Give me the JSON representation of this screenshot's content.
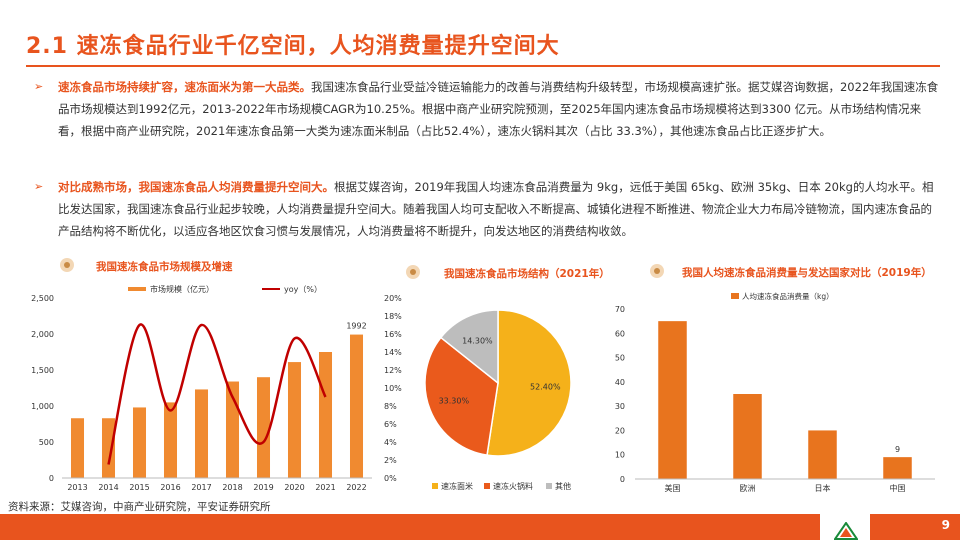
{
  "header": {
    "title": "2.1 速冻食品行业千亿空间，人均消费量提升空间大"
  },
  "paragraphs": [
    {
      "arrow": "➢",
      "bold": "速冻食品市场持续扩容，速冻面米为第一大品类。",
      "text": "我国速冻食品行业受益冷链运输能力的改善与消费结构升级转型，市场规模高速扩张。据艾媒咨询数据，2022年我国速冻食品市场规模达到1992亿元，2013-2022年市场规模CAGR为10.25%。根据中商产业研究院预测，至2025年国内速冻食品市场规模将达到3300 亿元。从市场结构情况来看，根据中商产业研究院，2021年速冻食品第一大类为速冻面米制品（占比52.4%），速冻火锅料其次（占比 33.3%），其他速冻食品占比正逐步扩大。"
    },
    {
      "arrow": "➢",
      "bold": "对比成熟市场，我国速冻食品人均消费量提升空间大。",
      "text": "根据艾媒咨询，2019年我国人均速冻食品消费量为 9kg，远低于美国 65kg、欧洲 35kg、日本 20kg的人均水平。相比发达国家，我国速冻食品行业起步较晚，人均消费量提升空间大。随着我国人均可支配收入不断提高、城镇化进程不断推进、物流企业大力布局冷链物流，国内速冻食品的产品结构将不断优化，以适应各地区饮食习惯与发展情况，人均消费量将不断提升，向发达地区的消费结构收敛。"
    }
  ],
  "charts": {
    "market": {
      "section_title": "我国速冻食品市场规模及增速",
      "legend_bar": "市场规模（亿元）",
      "legend_line": "yoy（%）",
      "last_label": "1992"
    },
    "structure": {
      "section_title": "我国速冻食品市场结构（2021年）"
    },
    "percapita": {
      "section_title": "我国人均速冻食品消费量与发达国家对比（2019年）",
      "legend": "人均速冻食品消费量（kg）",
      "value_label": "9"
    }
  },
  "chart_data": [
    {
      "type": "bar",
      "title": "我国速冻食品市场规模及增速",
      "categories": [
        "2013",
        "2014",
        "2015",
        "2016",
        "2017",
        "2018",
        "2019",
        "2020",
        "2021",
        "2022"
      ],
      "series": [
        {
          "name": "市场规模（亿元）",
          "axis": "left",
          "type": "bar",
          "values": [
            830,
            830,
            980,
            1050,
            1230,
            1340,
            1400,
            1610,
            1750,
            1992
          ]
        },
        {
          "name": "yoy（%）",
          "axis": "right",
          "type": "line",
          "values": [
            null,
            1.5,
            17.0,
            7.5,
            17.0,
            9.0,
            4.0,
            15.5,
            9.0,
            null
          ]
        }
      ],
      "ylim": [
        0,
        2500
      ],
      "yticks": [
        "0",
        "500",
        "1,000",
        "1,500",
        "2,000",
        "2,500"
      ],
      "y2lim": [
        0,
        20
      ],
      "y2ticks": [
        "0%",
        "2%",
        "4%",
        "6%",
        "8%",
        "10%",
        "12%",
        "14%",
        "16%",
        "18%",
        "20%"
      ],
      "colors": {
        "bar": "#f08a30",
        "line": "#c00000"
      }
    },
    {
      "type": "pie",
      "title": "我国速冻食品市场结构（2021年）",
      "labels": [
        "速冻面米",
        "速冻火锅料",
        "其他"
      ],
      "values": [
        52.4,
        33.3,
        14.3
      ],
      "value_labels": [
        "52.40%",
        "33.30%",
        "14.30%"
      ],
      "colors": [
        "#f5b11a",
        "#ea5a1c",
        "#bdbdbd"
      ]
    },
    {
      "type": "bar",
      "title": "我国人均速冻食品消费量与发达国家对比（2019年）",
      "categories": [
        "美国",
        "欧洲",
        "日本",
        "中国"
      ],
      "values": [
        65,
        35,
        20,
        9
      ],
      "ylim": [
        0,
        70
      ],
      "yticks": [
        "0",
        "10",
        "20",
        "30",
        "40",
        "50",
        "60",
        "70"
      ],
      "colors": {
        "bar": "#e8741e"
      }
    }
  ],
  "source": "资料来源：艾媒咨询，中商产业研究院，平安证券研究所",
  "footer": {
    "page_number": "9"
  }
}
